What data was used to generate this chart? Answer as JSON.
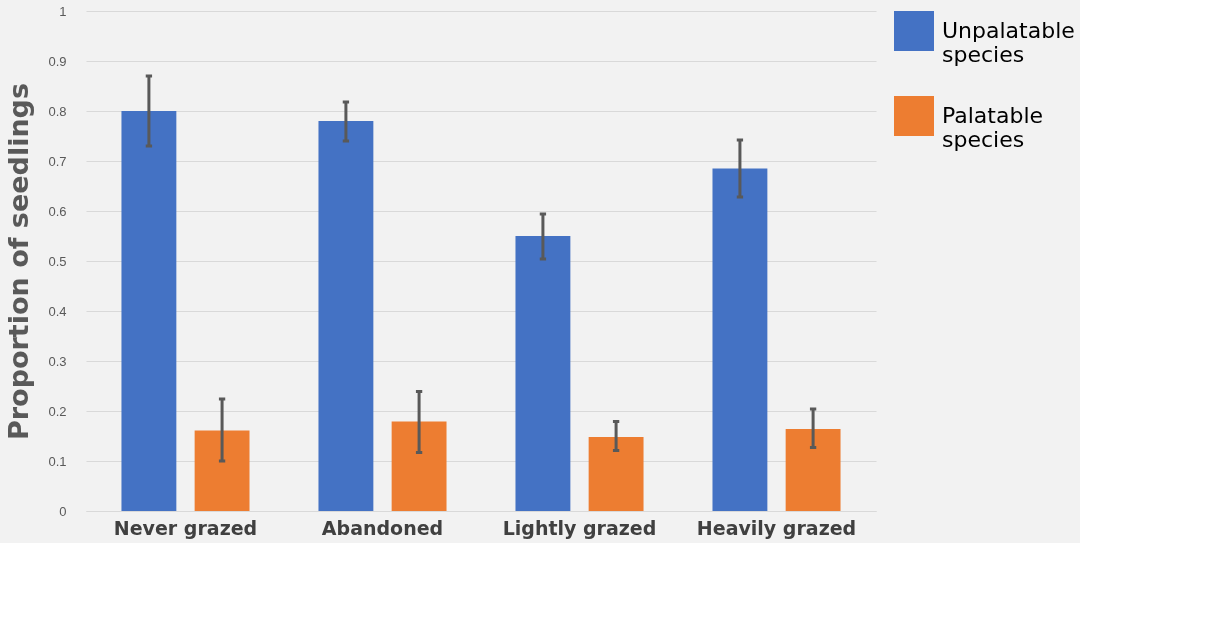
{
  "chart_data": {
    "type": "bar",
    "ylabel": "Proportion of seedlings",
    "categories": [
      "Never grazed",
      "Abandoned",
      "Lightly grazed",
      "Heavily grazed"
    ],
    "series": [
      {
        "name": "Unpalatable species",
        "color": "#4472c4",
        "values": [
          0.8,
          0.78,
          0.55,
          0.685
        ],
        "errors": [
          [
            0.73,
            0.87
          ],
          [
            0.74,
            0.818
          ],
          [
            0.504,
            0.594
          ],
          [
            0.628,
            0.742
          ]
        ]
      },
      {
        "name": "Palatable species",
        "color": "#ed7d31",
        "values": [
          0.161,
          0.179,
          0.148,
          0.164
        ],
        "errors": [
          [
            0.1,
            0.224
          ],
          [
            0.117,
            0.239
          ],
          [
            0.121,
            0.179
          ],
          [
            0.127,
            0.204
          ]
        ]
      }
    ],
    "ylim": [
      0,
      1
    ],
    "yticks": [
      0,
      0.1,
      0.2,
      0.3,
      0.4,
      0.5,
      0.6,
      0.7,
      0.8,
      0.9,
      1
    ],
    "grid": "y",
    "legend": "top right"
  }
}
